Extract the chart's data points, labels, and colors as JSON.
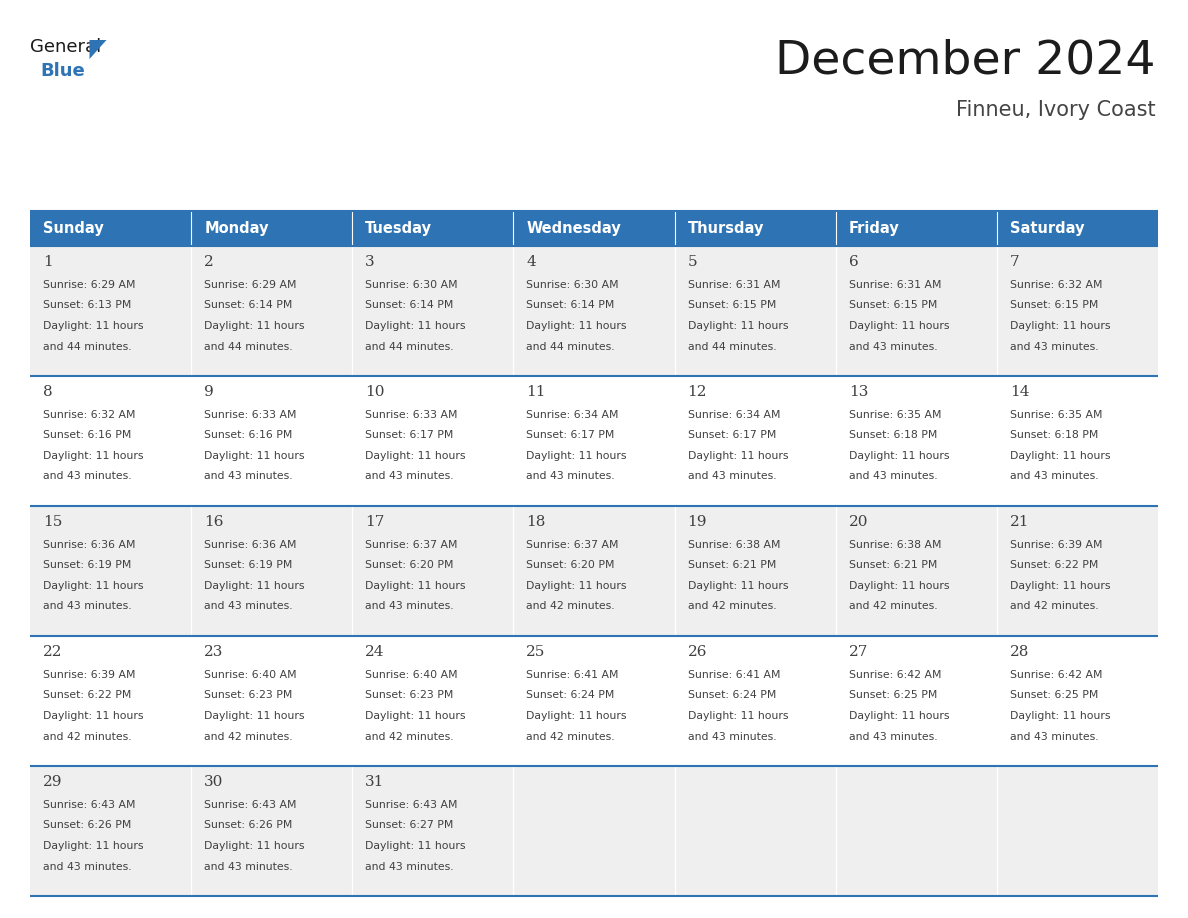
{
  "title": "December 2024",
  "subtitle": "Finneu, Ivory Coast",
  "header_bg": "#2E74B5",
  "header_text_color": "#FFFFFF",
  "days_of_week": [
    "Sunday",
    "Monday",
    "Tuesday",
    "Wednesday",
    "Thursday",
    "Friday",
    "Saturday"
  ],
  "cell_bg_odd": "#EFEFEF",
  "cell_bg_even": "#FFFFFF",
  "text_color": "#404040",
  "line_color": "#2E74B5",
  "calendar": [
    [
      {
        "day": 1,
        "sunrise": "6:29 AM",
        "sunset": "6:13 PM",
        "daylight": "11 hours and 44 minutes."
      },
      {
        "day": 2,
        "sunrise": "6:29 AM",
        "sunset": "6:14 PM",
        "daylight": "11 hours and 44 minutes."
      },
      {
        "day": 3,
        "sunrise": "6:30 AM",
        "sunset": "6:14 PM",
        "daylight": "11 hours and 44 minutes."
      },
      {
        "day": 4,
        "sunrise": "6:30 AM",
        "sunset": "6:14 PM",
        "daylight": "11 hours and 44 minutes."
      },
      {
        "day": 5,
        "sunrise": "6:31 AM",
        "sunset": "6:15 PM",
        "daylight": "11 hours and 44 minutes."
      },
      {
        "day": 6,
        "sunrise": "6:31 AM",
        "sunset": "6:15 PM",
        "daylight": "11 hours and 43 minutes."
      },
      {
        "day": 7,
        "sunrise": "6:32 AM",
        "sunset": "6:15 PM",
        "daylight": "11 hours and 43 minutes."
      }
    ],
    [
      {
        "day": 8,
        "sunrise": "6:32 AM",
        "sunset": "6:16 PM",
        "daylight": "11 hours and 43 minutes."
      },
      {
        "day": 9,
        "sunrise": "6:33 AM",
        "sunset": "6:16 PM",
        "daylight": "11 hours and 43 minutes."
      },
      {
        "day": 10,
        "sunrise": "6:33 AM",
        "sunset": "6:17 PM",
        "daylight": "11 hours and 43 minutes."
      },
      {
        "day": 11,
        "sunrise": "6:34 AM",
        "sunset": "6:17 PM",
        "daylight": "11 hours and 43 minutes."
      },
      {
        "day": 12,
        "sunrise": "6:34 AM",
        "sunset": "6:17 PM",
        "daylight": "11 hours and 43 minutes."
      },
      {
        "day": 13,
        "sunrise": "6:35 AM",
        "sunset": "6:18 PM",
        "daylight": "11 hours and 43 minutes."
      },
      {
        "day": 14,
        "sunrise": "6:35 AM",
        "sunset": "6:18 PM",
        "daylight": "11 hours and 43 minutes."
      }
    ],
    [
      {
        "day": 15,
        "sunrise": "6:36 AM",
        "sunset": "6:19 PM",
        "daylight": "11 hours and 43 minutes."
      },
      {
        "day": 16,
        "sunrise": "6:36 AM",
        "sunset": "6:19 PM",
        "daylight": "11 hours and 43 minutes."
      },
      {
        "day": 17,
        "sunrise": "6:37 AM",
        "sunset": "6:20 PM",
        "daylight": "11 hours and 43 minutes."
      },
      {
        "day": 18,
        "sunrise": "6:37 AM",
        "sunset": "6:20 PM",
        "daylight": "11 hours and 42 minutes."
      },
      {
        "day": 19,
        "sunrise": "6:38 AM",
        "sunset": "6:21 PM",
        "daylight": "11 hours and 42 minutes."
      },
      {
        "day": 20,
        "sunrise": "6:38 AM",
        "sunset": "6:21 PM",
        "daylight": "11 hours and 42 minutes."
      },
      {
        "day": 21,
        "sunrise": "6:39 AM",
        "sunset": "6:22 PM",
        "daylight": "11 hours and 42 minutes."
      }
    ],
    [
      {
        "day": 22,
        "sunrise": "6:39 AM",
        "sunset": "6:22 PM",
        "daylight": "11 hours and 42 minutes."
      },
      {
        "day": 23,
        "sunrise": "6:40 AM",
        "sunset": "6:23 PM",
        "daylight": "11 hours and 42 minutes."
      },
      {
        "day": 24,
        "sunrise": "6:40 AM",
        "sunset": "6:23 PM",
        "daylight": "11 hours and 42 minutes."
      },
      {
        "day": 25,
        "sunrise": "6:41 AM",
        "sunset": "6:24 PM",
        "daylight": "11 hours and 42 minutes."
      },
      {
        "day": 26,
        "sunrise": "6:41 AM",
        "sunset": "6:24 PM",
        "daylight": "11 hours and 43 minutes."
      },
      {
        "day": 27,
        "sunrise": "6:42 AM",
        "sunset": "6:25 PM",
        "daylight": "11 hours and 43 minutes."
      },
      {
        "day": 28,
        "sunrise": "6:42 AM",
        "sunset": "6:25 PM",
        "daylight": "11 hours and 43 minutes."
      }
    ],
    [
      {
        "day": 29,
        "sunrise": "6:43 AM",
        "sunset": "6:26 PM",
        "daylight": "11 hours and 43 minutes."
      },
      {
        "day": 30,
        "sunrise": "6:43 AM",
        "sunset": "6:26 PM",
        "daylight": "11 hours and 43 minutes."
      },
      {
        "day": 31,
        "sunrise": "6:43 AM",
        "sunset": "6:27 PM",
        "daylight": "11 hours and 43 minutes."
      },
      null,
      null,
      null,
      null
    ]
  ],
  "logo_text_general": "General",
  "logo_text_blue": "Blue",
  "logo_general_color": "#1A1A1A",
  "logo_blue_color": "#2E74B5",
  "logo_triangle_color": "#2E74B5"
}
